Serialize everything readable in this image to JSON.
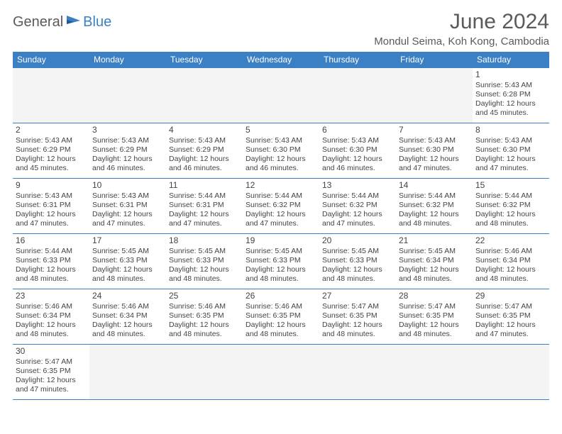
{
  "logo": {
    "part1": "General",
    "part2": "Blue"
  },
  "title": "June 2024",
  "location": "Mondul Seima, Koh Kong, Cambodia",
  "colors": {
    "header_bg": "#3b7fc4",
    "header_fg": "#ffffff",
    "border": "#3b7fc4",
    "empty_bg": "#f4f4f4",
    "text": "#444444",
    "title_color": "#5a5a5a"
  },
  "dayHeaders": [
    "Sunday",
    "Monday",
    "Tuesday",
    "Wednesday",
    "Thursday",
    "Friday",
    "Saturday"
  ],
  "startOffset": 6,
  "days": [
    {
      "n": 1,
      "sr": "5:43 AM",
      "ss": "6:28 PM",
      "dl": "12 hours and 45 minutes."
    },
    {
      "n": 2,
      "sr": "5:43 AM",
      "ss": "6:29 PM",
      "dl": "12 hours and 45 minutes."
    },
    {
      "n": 3,
      "sr": "5:43 AM",
      "ss": "6:29 PM",
      "dl": "12 hours and 46 minutes."
    },
    {
      "n": 4,
      "sr": "5:43 AM",
      "ss": "6:29 PM",
      "dl": "12 hours and 46 minutes."
    },
    {
      "n": 5,
      "sr": "5:43 AM",
      "ss": "6:30 PM",
      "dl": "12 hours and 46 minutes."
    },
    {
      "n": 6,
      "sr": "5:43 AM",
      "ss": "6:30 PM",
      "dl": "12 hours and 46 minutes."
    },
    {
      "n": 7,
      "sr": "5:43 AM",
      "ss": "6:30 PM",
      "dl": "12 hours and 47 minutes."
    },
    {
      "n": 8,
      "sr": "5:43 AM",
      "ss": "6:30 PM",
      "dl": "12 hours and 47 minutes."
    },
    {
      "n": 9,
      "sr": "5:43 AM",
      "ss": "6:31 PM",
      "dl": "12 hours and 47 minutes."
    },
    {
      "n": 10,
      "sr": "5:43 AM",
      "ss": "6:31 PM",
      "dl": "12 hours and 47 minutes."
    },
    {
      "n": 11,
      "sr": "5:44 AM",
      "ss": "6:31 PM",
      "dl": "12 hours and 47 minutes."
    },
    {
      "n": 12,
      "sr": "5:44 AM",
      "ss": "6:32 PM",
      "dl": "12 hours and 47 minutes."
    },
    {
      "n": 13,
      "sr": "5:44 AM",
      "ss": "6:32 PM",
      "dl": "12 hours and 47 minutes."
    },
    {
      "n": 14,
      "sr": "5:44 AM",
      "ss": "6:32 PM",
      "dl": "12 hours and 48 minutes."
    },
    {
      "n": 15,
      "sr": "5:44 AM",
      "ss": "6:32 PM",
      "dl": "12 hours and 48 minutes."
    },
    {
      "n": 16,
      "sr": "5:44 AM",
      "ss": "6:33 PM",
      "dl": "12 hours and 48 minutes."
    },
    {
      "n": 17,
      "sr": "5:45 AM",
      "ss": "6:33 PM",
      "dl": "12 hours and 48 minutes."
    },
    {
      "n": 18,
      "sr": "5:45 AM",
      "ss": "6:33 PM",
      "dl": "12 hours and 48 minutes."
    },
    {
      "n": 19,
      "sr": "5:45 AM",
      "ss": "6:33 PM",
      "dl": "12 hours and 48 minutes."
    },
    {
      "n": 20,
      "sr": "5:45 AM",
      "ss": "6:33 PM",
      "dl": "12 hours and 48 minutes."
    },
    {
      "n": 21,
      "sr": "5:45 AM",
      "ss": "6:34 PM",
      "dl": "12 hours and 48 minutes."
    },
    {
      "n": 22,
      "sr": "5:46 AM",
      "ss": "6:34 PM",
      "dl": "12 hours and 48 minutes."
    },
    {
      "n": 23,
      "sr": "5:46 AM",
      "ss": "6:34 PM",
      "dl": "12 hours and 48 minutes."
    },
    {
      "n": 24,
      "sr": "5:46 AM",
      "ss": "6:34 PM",
      "dl": "12 hours and 48 minutes."
    },
    {
      "n": 25,
      "sr": "5:46 AM",
      "ss": "6:35 PM",
      "dl": "12 hours and 48 minutes."
    },
    {
      "n": 26,
      "sr": "5:46 AM",
      "ss": "6:35 PM",
      "dl": "12 hours and 48 minutes."
    },
    {
      "n": 27,
      "sr": "5:47 AM",
      "ss": "6:35 PM",
      "dl": "12 hours and 48 minutes."
    },
    {
      "n": 28,
      "sr": "5:47 AM",
      "ss": "6:35 PM",
      "dl": "12 hours and 48 minutes."
    },
    {
      "n": 29,
      "sr": "5:47 AM",
      "ss": "6:35 PM",
      "dl": "12 hours and 47 minutes."
    },
    {
      "n": 30,
      "sr": "5:47 AM",
      "ss": "6:35 PM",
      "dl": "12 hours and 47 minutes."
    }
  ],
  "labels": {
    "sunrise": "Sunrise:",
    "sunset": "Sunset:",
    "daylight": "Daylight:"
  }
}
